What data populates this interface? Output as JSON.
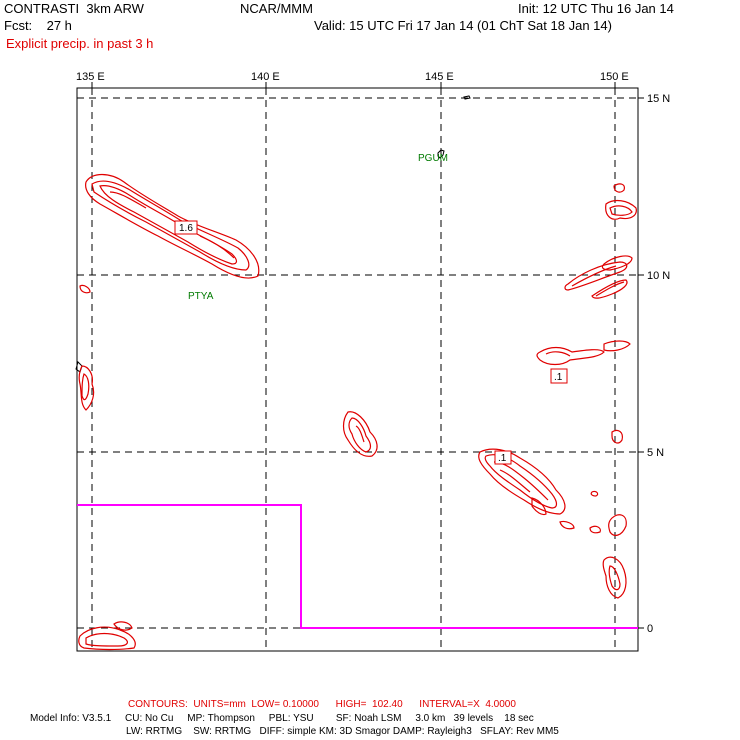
{
  "header": {
    "left_line1": "CONTRASTI  3km ARW",
    "left_line2": "Fcst:    27 h",
    "left_line3": "Explicit precip. in past 3 h",
    "center": "NCAR/MMM",
    "right_line1": "Init: 12 UTC Thu 16 Jan 14",
    "right_line2": "Valid: 15 UTC Fri 17 Jan 14 (01 ChT Sat 18 Jan 14)"
  },
  "map": {
    "lon_labels": [
      "135 E",
      "140 E",
      "145 E",
      "150 E"
    ],
    "lat_labels": [
      "15 N",
      "10 N",
      "5 N",
      "0"
    ],
    "stations": [
      "PGUM",
      "PTYA"
    ],
    "contour_labels": [
      "1.6",
      ".1",
      ".1"
    ],
    "colors": {
      "precip_contour": "#e00000",
      "domain_box": "#ff00ff",
      "grid": "#000000",
      "station": "#007a00"
    }
  },
  "footer": {
    "contours": "CONTOURS:  UNITS=mm  LOW= 0.10000      HIGH=  102.40      INTERVAL=X  4.0000",
    "model_line1": "Model Info: V3.5.1     CU: No Cu     MP: Thompson     PBL: YSU        SF: Noah LSM     3.0 km   39 levels    18 sec",
    "model_line2": "LW: RRTMG    SW: RRTMG   DIFF: simple KM: 3D Smagor DAMP: Rayleigh3   SFLAY: Rev MM5"
  }
}
